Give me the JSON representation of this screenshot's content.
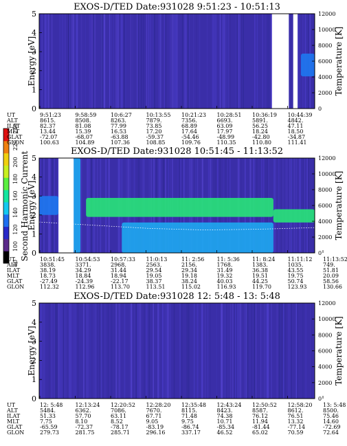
{
  "chart_data": {
    "type": "heatmap",
    "colorbar": {
      "label": "Second Harmonic Current",
      "ticks": [
        "80",
        "100",
        "120",
        "140",
        "160",
        "180",
        "200",
        "220",
        "240"
      ],
      "range": [
        80,
        240
      ],
      "colors": [
        "#000000",
        "#5a2a8a",
        "#2828c8",
        "#1e6ef0",
        "#14c8f0",
        "#14e6a0",
        "#5af040",
        "#c8f020",
        "#f0d010",
        "#f08010",
        "#e01010"
      ]
    },
    "panels": [
      {
        "title": "EXOS-D/TED   Date:931028  9:51:23 - 10:51:13",
        "ylabel": "Energy [eV]",
        "y2label": "Temperature [K]",
        "yticks": [
          "0",
          "1",
          "2",
          "3",
          "4",
          "5"
        ],
        "ylim": [
          0,
          5
        ],
        "y2ticks": [
          "0",
          "2000",
          "4000",
          "6000",
          "8000",
          "10000",
          "12000"
        ],
        "y2lim": [
          0,
          12000
        ],
        "data_gaps": [
          [
            0.845,
            0.906
          ],
          [
            0.922,
            0.938
          ]
        ],
        "features": [
          {
            "x": [
              0.95,
              1.0
            ],
            "y": [
              1.7,
              2.9
            ],
            "level": "medium-high"
          }
        ],
        "eph_labels": [
          "UT",
          "ALT",
          "ILAT",
          "MLT",
          "GLAT",
          "GLON"
        ],
        "columns": [
          {
            "UT": "9:51:23",
            "ALT": "8615.",
            "ILAT": "82.37",
            "MLT": "13.44",
            "GLAT": "-72.07",
            "GLON": "100.63"
          },
          {
            "UT": "9:58:59",
            "ALT": "8508.",
            "ILAT": "81.08",
            "MLT": "15.39",
            "GLAT": "-68.07",
            "GLON": "104.89"
          },
          {
            "UT": "10:6:27",
            "ALT": "8263.",
            "ILAT": "77.99",
            "MLT": "16.53",
            "GLAT": "-63.88",
            "GLON": "107.36"
          },
          {
            "UT": "10:13:55",
            "ALT": "7879.",
            "ILAT": "73.85",
            "MLT": "17.20",
            "GLAT": "-59.37",
            "GLON": "108.85"
          },
          {
            "UT": "10:21:23",
            "ALT": "7356.",
            "ILAT": "68.89",
            "MLT": "17.64",
            "GLAT": "-54.46",
            "GLON": "109.76"
          },
          {
            "UT": "10:28:51",
            "ALT": "6693.",
            "ILAT": "63.09",
            "MLT": "17.97",
            "GLAT": "-48.99",
            "GLON": "110.35"
          },
          {
            "UT": "10:36:19",
            "ALT": "5891.",
            "ILAT": "56.25",
            "MLT": "18.24",
            "GLAT": "-42.80",
            "GLON": "110.80"
          },
          {
            "UT": "10:44:39",
            "ALT": "4842.",
            "ILAT": "47.11",
            "MLT": "18.50",
            "GLAT": "-34.87",
            "GLON": "111.41"
          }
        ]
      },
      {
        "title": "EXOS-D/TED   Date:931028  10:51:45 - 11:13:52",
        "ylabel": "Energy [eV]",
        "y2label": "Temperature [K]",
        "yticks": [
          "0",
          "1",
          "2",
          "3",
          "4",
          "5"
        ],
        "ylim": [
          0,
          5
        ],
        "y2ticks": [
          "0",
          "2000",
          "4000",
          "6000",
          "8000",
          "10000",
          "12000"
        ],
        "y2lim": [
          0,
          12000
        ],
        "data_gaps": [
          [
            0.07,
            0.125
          ]
        ],
        "features": [
          {
            "x": [
              0.0,
              0.07
            ],
            "y": [
              2.0,
              3.0
            ],
            "level": "medium-high"
          },
          {
            "x": [
              0.125,
              0.15
            ],
            "y": [
              0.0,
              5.0
            ],
            "level": "medium"
          },
          {
            "x": [
              0.17,
              0.85
            ],
            "y": [
              1.9,
              2.9
            ],
            "level": "high"
          },
          {
            "x": [
              0.85,
              1.0
            ],
            "y": [
              1.6,
              2.3
            ],
            "level": "high"
          },
          {
            "x": [
              0.3,
              0.85
            ],
            "y": [
              0.0,
              1.6
            ],
            "level": "medium"
          }
        ],
        "temperature_trace": {
          "x": [
            0.0,
            0.2,
            0.4,
            0.6,
            0.8,
            1.0
          ],
          "y": [
            3900,
            3500,
            3100,
            2900,
            3000,
            3200
          ]
        },
        "eph_labels": [
          "UT",
          "ALT",
          "ILAT",
          "MLT",
          "GLAT",
          "GLON"
        ],
        "columns": [
          {
            "UT": "10:51:45",
            "ALT": "3838.",
            "ILAT": "38.19",
            "MLT": "18.73",
            "GLAT": "-27.49",
            "GLON": "112.32"
          },
          {
            "UT": "10:54:53",
            "ALT": "3371.",
            "ILAT": "34.29",
            "MLT": "18.84",
            "GLAT": "-24.39",
            "GLON": "112.96"
          },
          {
            "UT": "10:57:33",
            "ALT": "2968.",
            "ILAT": "31.44",
            "MLT": "18.94",
            "GLAT": "-22.17",
            "GLON": "113.70"
          },
          {
            "UT": "11:0:13",
            "ALT": "2563.",
            "ILAT": "29.54",
            "MLT": "19.05",
            "GLAT": "38.37",
            "GLON": "113.51"
          },
          {
            "UT": "11: 2:56",
            "ALT": "2156.",
            "ILAT": "29.34",
            "MLT": "19.18",
            "GLAT": "38.24",
            "GLON": "115.02"
          },
          {
            "UT": "11: 5:36",
            "ALT": "1768.",
            "ILAT": "31.49",
            "MLT": "19.32",
            "GLAT": "40.03",
            "GLON": "116.93"
          },
          {
            "UT": "11: 8:24",
            "ALT": "1383.",
            "ILAT": "36.38",
            "MLT": "19.51",
            "GLAT": "44.25",
            "GLON": "119.70"
          },
          {
            "UT": "11:11:12",
            "ALT": "1035.",
            "ILAT": "43.55",
            "MLT": "19.75",
            "GLAT": "50.74",
            "GLON": "123.93"
          },
          {
            "UT": "11:13:52",
            "ALT": "749.",
            "ILAT": "51.81",
            "MLT": "20.09",
            "GLAT": "58.56",
            "GLON": "130.66"
          }
        ]
      },
      {
        "title": "EXOS-D/TED   Date:931028  12: 5:48 - 13: 5:48",
        "ylabel": "Energy [eV]",
        "y2label": "Temperature [K]",
        "yticks": [
          "0",
          "1",
          "2",
          "3",
          "4",
          "5"
        ],
        "ylim": [
          0,
          5
        ],
        "y2ticks": [
          "0",
          "2000",
          "4000",
          "6000",
          "8000",
          "10000",
          "12000"
        ],
        "y2lim": [
          0,
          12000
        ],
        "data_gaps": [],
        "features": [],
        "eph_labels": [
          "UT",
          "ALT",
          "ILAT",
          "MLT",
          "GLAT",
          "GLON"
        ],
        "columns": [
          {
            "UT": "12: 5:48",
            "ALT": "5484.",
            "ILAT": "51.33",
            "MLT": "7.75",
            "GLAT": "-65.59",
            "GLON": "279.73"
          },
          {
            "UT": "12:13:24",
            "ALT": "6362.",
            "ILAT": "57.70",
            "MLT": "8.10",
            "GLAT": "-72.37",
            "GLON": "281.75"
          },
          {
            "UT": "12:20:52",
            "ALT": "7086.",
            "ILAT": "63.11",
            "MLT": "8.52",
            "GLAT": "-78.17",
            "GLON": "285.71"
          },
          {
            "UT": "12:28:20",
            "ALT": "7670.",
            "ILAT": "67.71",
            "MLT": "9.05",
            "GLAT": "-83.19",
            "GLON": "296.16"
          },
          {
            "UT": "12:35:48",
            "ALT": "8115.",
            "ILAT": "71.48",
            "MLT": "9.75",
            "GLAT": "-86.74",
            "GLON": "337.17"
          },
          {
            "UT": "12:43:24",
            "ALT": "8423.",
            "ILAT": "74.38",
            "MLT": "10.71",
            "GLAT": "-85.34",
            "GLON": "46.52"
          },
          {
            "UT": "12:50:52",
            "ALT": "8587.",
            "ILAT": "76.12",
            "MLT": "11.94",
            "GLAT": "-81.44",
            "GLON": "65.02"
          },
          {
            "UT": "12:58:20",
            "ALT": "8612.",
            "ILAT": "76.51",
            "MLT": "13.32",
            "GLAT": "-77.14",
            "GLON": "70.59"
          },
          {
            "UT": "13: 5:48",
            "ALT": "8500.",
            "ILAT": "75.46",
            "MLT": "14.60",
            "GLAT": "-72.69",
            "GLON": "72.64"
          }
        ]
      }
    ]
  }
}
